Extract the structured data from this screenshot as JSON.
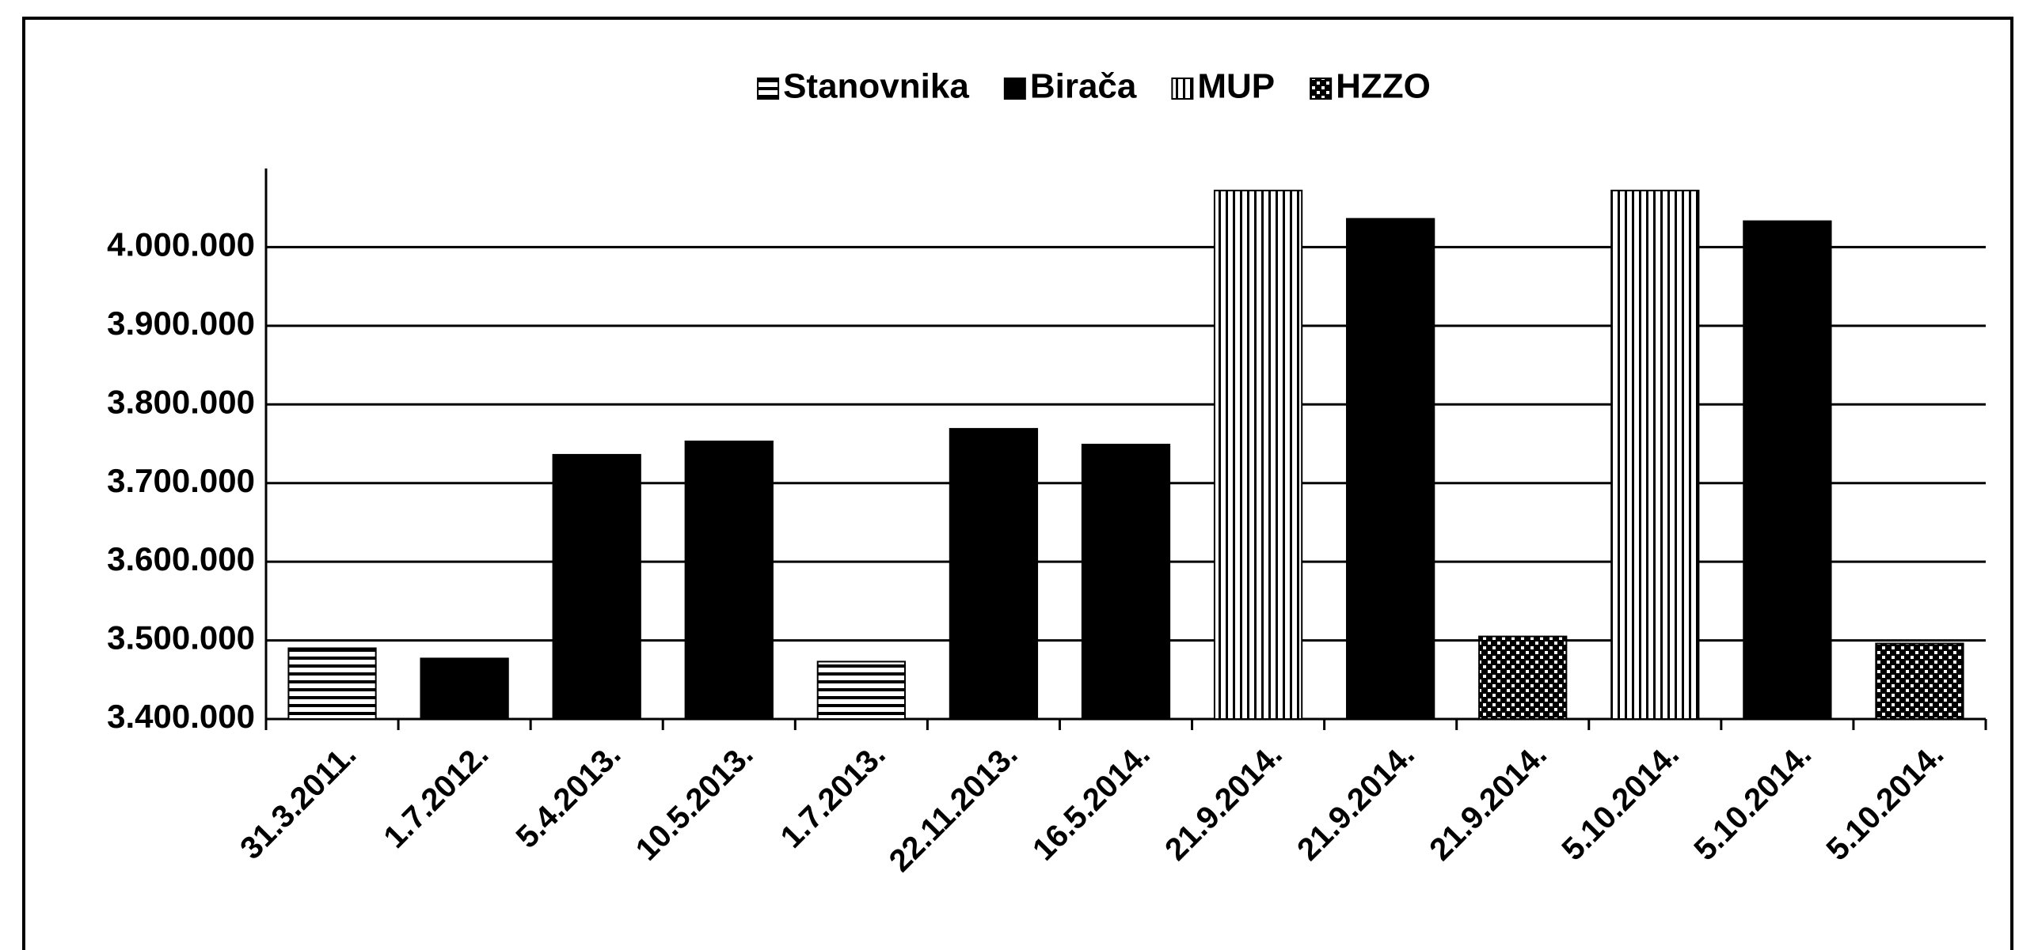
{
  "chart_data": {
    "type": "bar",
    "categories": [
      "31.3.2011.",
      "1.7.2012.",
      "5.4.2013.",
      "10.5.2013.",
      "1.7.2013.",
      "22.11.2013.",
      "16.5.2014.",
      "21.9.2014.",
      "21.9.2014.",
      "21.9.2014.",
      "5.10.2014.",
      "5.10.2014.",
      "5.10.2014."
    ],
    "series": [
      {
        "name": "Stanovnika",
        "color": "#000000",
        "pattern": "horizontal-lines",
        "values": [
          3490000,
          null,
          null,
          null,
          3473000,
          null,
          null,
          null,
          null,
          null,
          null,
          null,
          null
        ]
      },
      {
        "name": "Birača",
        "color": "#000000",
        "pattern": "solid",
        "values": [
          null,
          3477000,
          3736000,
          3753000,
          null,
          3769000,
          3749000,
          null,
          4036000,
          null,
          null,
          4033000,
          null
        ]
      },
      {
        "name": "MUP",
        "color": "#000000",
        "pattern": "vertical-lines",
        "values": [
          null,
          null,
          null,
          null,
          null,
          null,
          null,
          4072000,
          null,
          null,
          4072000,
          null,
          null
        ]
      },
      {
        "name": "HZZO",
        "color": "#000000",
        "pattern": "dots",
        "values": [
          null,
          null,
          null,
          null,
          null,
          null,
          null,
          null,
          null,
          3505000,
          null,
          null,
          3496000
        ]
      }
    ],
    "ylim": [
      3400000,
      4100000
    ],
    "yticks": [
      {
        "value": 3400000,
        "label": "3.400.000"
      },
      {
        "value": 3500000,
        "label": "3.500.000"
      },
      {
        "value": 3600000,
        "label": "3.600.000"
      },
      {
        "value": 3700000,
        "label": "3.700.000"
      },
      {
        "value": 3800000,
        "label": "3.800.000"
      },
      {
        "value": 3900000,
        "label": "3.900.000"
      },
      {
        "value": 4000000,
        "label": "4.000.000"
      }
    ],
    "grid": true,
    "legend": "top"
  }
}
